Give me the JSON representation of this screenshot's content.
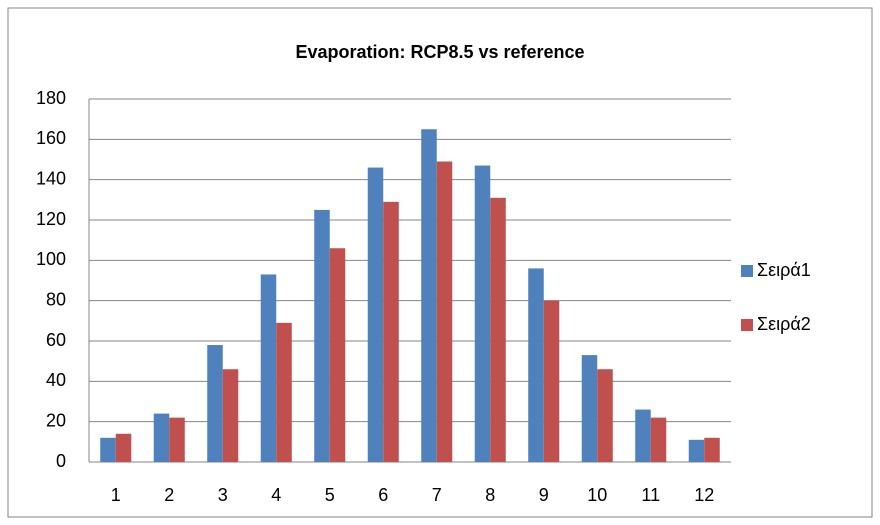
{
  "chart_data": {
    "type": "bar",
    "title": "Evaporation: RCP8.5 vs reference",
    "categories": [
      "1",
      "2",
      "3",
      "4",
      "5",
      "6",
      "7",
      "8",
      "9",
      "10",
      "11",
      "12"
    ],
    "series": [
      {
        "name": "Σειρά1",
        "color": "#4f81bd",
        "values": [
          12,
          24,
          58,
          93,
          125,
          146,
          165,
          147,
          96,
          53,
          26,
          11
        ]
      },
      {
        "name": "Σειρά2",
        "color": "#c0504d",
        "values": [
          14,
          22,
          46,
          69,
          106,
          129,
          149,
          131,
          80,
          46,
          22,
          12
        ]
      }
    ],
    "ylim": [
      0,
      180
    ],
    "yticks": [
      0,
      20,
      40,
      60,
      80,
      100,
      120,
      140,
      160,
      180
    ],
    "grid": true,
    "legend": "right"
  }
}
